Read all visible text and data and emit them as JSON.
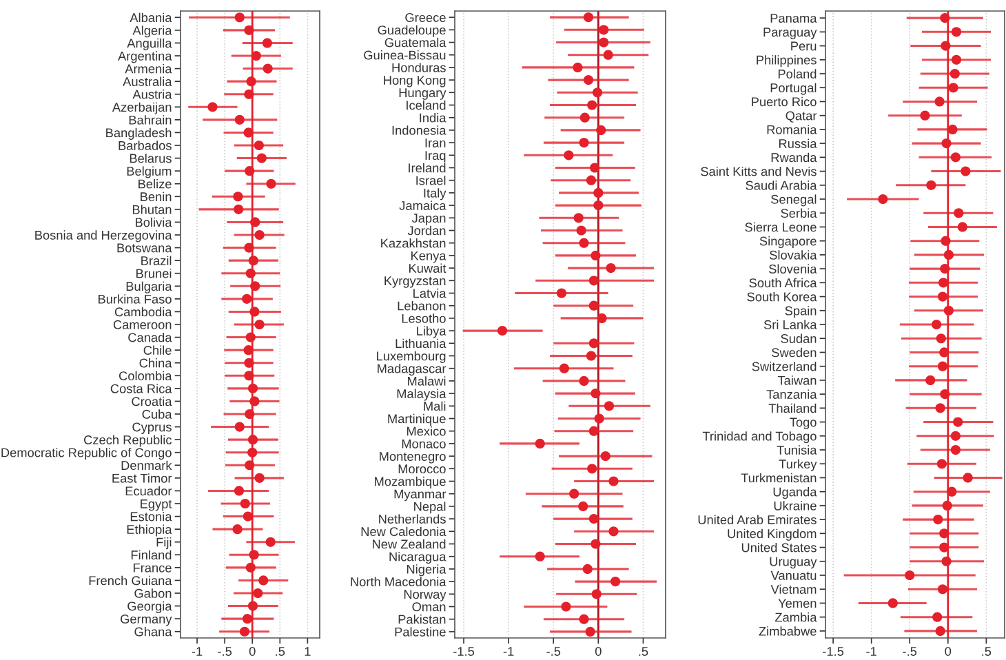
{
  "chart_data": [
    {
      "type": "scatter",
      "orientation": "horizontal",
      "color": "#e4202b",
      "marker": "circle",
      "grid": "x",
      "xlim": [
        -1.3,
        1.22
      ],
      "xticks": [
        -1,
        {
          "value": -0.5,
          "label": "-.5"
        },
        0,
        {
          "value": 0.5,
          "label": ".5"
        },
        1
      ],
      "ref_lines": [
        {
          "axis": "x",
          "value": 0,
          "color": "#e4202b"
        }
      ],
      "categories": [
        "Albania",
        "Algeria",
        "Anguilla",
        "Argentina",
        "Armenia",
        "Australia",
        "Austria",
        "Azerbaijan",
        "Bahrain",
        "Bangladesh",
        "Barbados",
        "Belarus",
        "Belgium",
        "Belize",
        "Benin",
        "Bhutan",
        "Bolivia",
        "Bosnia and Herzegovina",
        "Botswana",
        "Brazil",
        "Brunei",
        "Bulgaria",
        "Burkina Faso",
        "Cambodia",
        "Cameroon",
        "Canada",
        "Chile",
        "China",
        "Colombia",
        "Costa Rica",
        "Croatia",
        "Cuba",
        "Cyprus",
        "Czech Republic",
        "Democratic Republic of Congo",
        "Denmark",
        "East Timor",
        "Ecuador",
        "Egypt",
        "Estonia",
        "Ethiopia",
        "Fiji",
        "Finland",
        "France",
        "French Guiana",
        "Gabon",
        "Georgia",
        "Germany",
        "Ghana"
      ],
      "values": [
        -0.23,
        -0.06,
        0.27,
        0.07,
        0.28,
        -0.02,
        -0.06,
        -0.72,
        -0.23,
        -0.07,
        0.12,
        0.17,
        -0.05,
        0.34,
        -0.26,
        -0.25,
        0.05,
        0.13,
        -0.06,
        0.02,
        -0.03,
        0.05,
        -0.1,
        0.04,
        0.13,
        -0.03,
        -0.07,
        -0.06,
        -0.06,
        0.01,
        0.04,
        -0.05,
        -0.23,
        0.01,
        0,
        -0.05,
        0.13,
        -0.24,
        -0.13,
        -0.08,
        -0.27,
        0.33,
        0.03,
        -0.03,
        0.2,
        0.1,
        0.01,
        -0.09,
        -0.14
      ],
      "errors": [
        [
          -1.15,
          0.68
        ],
        [
          -0.53,
          0.41
        ],
        [
          -0.18,
          0.73
        ],
        [
          -0.38,
          0.52
        ],
        [
          -0.17,
          0.73
        ],
        [
          -0.46,
          0.44
        ],
        [
          -0.51,
          0.38
        ],
        [
          -1.16,
          -0.27
        ],
        [
          -0.9,
          0.45
        ],
        [
          -0.52,
          0.38
        ],
        [
          -0.33,
          0.56
        ],
        [
          -0.28,
          0.62
        ],
        [
          -0.5,
          0.39
        ],
        [
          -0.11,
          0.78
        ],
        [
          -0.73,
          0.23
        ],
        [
          -0.97,
          0.48
        ],
        [
          -0.46,
          0.56
        ],
        [
          -0.33,
          0.58
        ],
        [
          -0.53,
          0.43
        ],
        [
          -0.43,
          0.47
        ],
        [
          -0.56,
          0.5
        ],
        [
          -0.4,
          0.51
        ],
        [
          -0.56,
          0.37
        ],
        [
          -0.43,
          0.52
        ],
        [
          -0.33,
          0.57
        ],
        [
          -0.47,
          0.43
        ],
        [
          -0.51,
          0.38
        ],
        [
          -0.5,
          0.38
        ],
        [
          -0.5,
          0.4
        ],
        [
          -0.45,
          0.48
        ],
        [
          -0.41,
          0.49
        ],
        [
          -0.52,
          0.43
        ],
        [
          -0.75,
          0.3
        ],
        [
          -0.44,
          0.47
        ],
        [
          -0.48,
          0.48
        ],
        [
          -0.49,
          0.41
        ],
        [
          -0.32,
          0.57
        ],
        [
          -0.8,
          0.3
        ],
        [
          -0.57,
          0.32
        ],
        [
          -0.53,
          0.39
        ],
        [
          -0.72,
          0.19
        ],
        [
          -0.11,
          0.77
        ],
        [
          -0.42,
          0.48
        ],
        [
          -0.48,
          0.43
        ],
        [
          -0.25,
          0.65
        ],
        [
          -0.34,
          0.55
        ],
        [
          -0.44,
          0.47
        ],
        [
          -0.56,
          0.39
        ],
        [
          -0.6,
          0.31
        ]
      ]
    },
    {
      "type": "scatter",
      "orientation": "horizontal",
      "color": "#e4202b",
      "marker": "circle",
      "grid": "x",
      "xlim": [
        -1.6,
        0.75
      ],
      "xticks": [
        {
          "value": -1.5,
          "label": "-1.5"
        },
        -1,
        {
          "value": -0.5,
          "label": "-.5"
        },
        0,
        {
          "value": 0.5,
          "label": ".5"
        }
      ],
      "ref_lines": [
        {
          "axis": "x",
          "value": 0,
          "color": "#b0101c"
        }
      ],
      "categories": [
        "Greece",
        "Guadeloupe",
        "Guatemala",
        "Guinea-Bissau",
        "Honduras",
        "Hong Kong",
        "Hungary",
        "Iceland",
        "India",
        "Indonesia",
        "Iran",
        "Iraq",
        "Ireland",
        "Israel",
        "Italy",
        "Jamaica",
        "Japan",
        "Jordan",
        "Kazakhstan",
        "Kenya",
        "Kuwait",
        "Kyrgyzstan",
        "Latvia",
        "Lebanon",
        "Lesotho",
        "Libya",
        "Lithuania",
        "Luxembourg",
        "Madagascar",
        "Malawi",
        "Malaysia",
        "Mali",
        "Martinique",
        "Mexico",
        "Monaco",
        "Montenegro",
        "Morocco",
        "Mozambique",
        "Myanmar",
        "Nepal",
        "Netherlands",
        "New Caledonia",
        "New Zealand",
        "Nicaragua",
        "Nigeria",
        "North Macedonia",
        "Norway",
        "Oman",
        "Pakistan",
        "Palestine"
      ],
      "values": [
        -0.11,
        0.06,
        0.06,
        0.11,
        -0.23,
        -0.11,
        -0.01,
        -0.07,
        -0.15,
        0.03,
        -0.16,
        -0.33,
        -0.04,
        -0.08,
        0,
        0,
        -0.22,
        -0.19,
        -0.16,
        -0.03,
        0.14,
        -0.05,
        -0.41,
        -0.05,
        0.04,
        -1.07,
        -0.05,
        -0.08,
        -0.38,
        -0.16,
        -0.03,
        0.12,
        0.01,
        -0.05,
        -0.65,
        0.08,
        -0.07,
        0.17,
        -0.27,
        -0.17,
        -0.05,
        0.17,
        -0.03,
        -0.65,
        -0.12,
        0.19,
        -0.02,
        -0.36,
        -0.16,
        -0.09
      ],
      "errors": [
        [
          -0.54,
          0.34
        ],
        [
          -0.38,
          0.51
        ],
        [
          -0.47,
          0.58
        ],
        [
          -0.34,
          0.56
        ],
        [
          -0.85,
          0.4
        ],
        [
          -0.56,
          0.34
        ],
        [
          -0.46,
          0.44
        ],
        [
          -0.54,
          0.42
        ],
        [
          -0.6,
          0.29
        ],
        [
          -0.42,
          0.47
        ],
        [
          -0.61,
          0.29
        ],
        [
          -0.83,
          0.16
        ],
        [
          -0.48,
          0.41
        ],
        [
          -0.53,
          0.36
        ],
        [
          -0.44,
          0.45
        ],
        [
          -0.48,
          0.48
        ],
        [
          -0.66,
          0.23
        ],
        [
          -0.64,
          0.27
        ],
        [
          -0.62,
          0.3
        ],
        [
          -0.48,
          0.42
        ],
        [
          -0.34,
          0.62
        ],
        [
          -0.7,
          0.62
        ],
        [
          -0.93,
          0.11
        ],
        [
          -0.5,
          0.39
        ],
        [
          -0.42,
          0.5
        ],
        [
          -1.51,
          -0.62
        ],
        [
          -0.5,
          0.4
        ],
        [
          -0.54,
          0.38
        ],
        [
          -0.94,
          0.17
        ],
        [
          -0.62,
          0.3
        ],
        [
          -0.48,
          0.41
        ],
        [
          -0.33,
          0.58
        ],
        [
          -0.45,
          0.47
        ],
        [
          -0.49,
          0.39
        ],
        [
          -1.1,
          -0.21
        ],
        [
          -0.44,
          0.6
        ],
        [
          -0.52,
          0.38
        ],
        [
          -0.27,
          0.62
        ],
        [
          -0.81,
          0.27
        ],
        [
          -0.63,
          0.28
        ],
        [
          -0.5,
          0.38
        ],
        [
          -0.27,
          0.62
        ],
        [
          -0.48,
          0.42
        ],
        [
          -1.1,
          -0.21
        ],
        [
          -0.57,
          0.34
        ],
        [
          -0.26,
          0.65
        ],
        [
          -0.47,
          0.43
        ],
        [
          -0.83,
          0.1
        ],
        [
          -0.61,
          0.29
        ],
        [
          -0.54,
          0.37
        ]
      ]
    },
    {
      "type": "scatter",
      "orientation": "horizontal",
      "color": "#e4202b",
      "marker": "circle",
      "grid": "x",
      "xlim": [
        -1.6,
        0.74
      ],
      "xticks": [
        {
          "value": -1.5,
          "label": "-1.5"
        },
        -1,
        {
          "value": -0.5,
          "label": "-.5"
        },
        0,
        {
          "value": 0.5,
          "label": ".5"
        }
      ],
      "ref_lines": [
        {
          "axis": "x",
          "value": 0,
          "color": "#e4202b"
        }
      ],
      "categories": [
        "Panama",
        "Paraguay",
        "Peru",
        "Philippines",
        "Poland",
        "Portugal",
        "Puerto Rico",
        "Qatar",
        "Romania",
        "Russia",
        "Rwanda",
        "Saint Kitts and Nevis",
        "Saudi Arabia",
        "Senegal",
        "Serbia",
        "Sierra Leone",
        "Singapore",
        "Slovakia",
        "Slovenia",
        "South Africa",
        "South Korea",
        "Spain",
        "Sri Lanka",
        "Sudan",
        "Sweden",
        "Switzerland",
        "Taiwan",
        "Tanzania",
        "Thailand",
        "Togo",
        "Trinidad and Tobago",
        "Tunisia",
        "Turkey",
        "Turkmenistan",
        "Uganda",
        "Ukraine",
        "United Arab Emirates",
        "United Kingdom",
        "United States",
        "Uruguay",
        "Vanuatu",
        "Vietnam",
        "Yemen",
        "Zambia",
        "Zimbabwe"
      ],
      "values": [
        -0.04,
        0.11,
        -0.03,
        0.11,
        0.09,
        0.07,
        -0.11,
        -0.3,
        0.06,
        -0.02,
        0.1,
        0.23,
        -0.22,
        -0.85,
        0.14,
        0.19,
        -0.03,
        0.01,
        -0.04,
        -0.06,
        -0.07,
        0.01,
        -0.15,
        -0.09,
        -0.05,
        -0.07,
        -0.23,
        -0.04,
        -0.1,
        0.13,
        0.1,
        0.1,
        -0.08,
        0.26,
        0.05,
        -0.01,
        -0.13,
        -0.05,
        -0.05,
        -0.02,
        -0.5,
        -0.07,
        -0.72,
        -0.14,
        -0.1
      ],
      "errors": [
        [
          -0.54,
          0.46
        ],
        [
          -0.34,
          0.56
        ],
        [
          -0.49,
          0.43
        ],
        [
          -0.34,
          0.56
        ],
        [
          -0.36,
          0.54
        ],
        [
          -0.38,
          0.52
        ],
        [
          -0.59,
          0.38
        ],
        [
          -0.78,
          0.18
        ],
        [
          -0.4,
          0.51
        ],
        [
          -0.47,
          0.43
        ],
        [
          -0.38,
          0.57
        ],
        [
          -0.22,
          0.69
        ],
        [
          -0.68,
          0.23
        ],
        [
          -1.32,
          -0.38
        ],
        [
          -0.32,
          0.59
        ],
        [
          -0.26,
          0.64
        ],
        [
          -0.49,
          0.41
        ],
        [
          -0.44,
          0.47
        ],
        [
          -0.5,
          0.42
        ],
        [
          -0.51,
          0.39
        ],
        [
          -0.51,
          0.39
        ],
        [
          -0.44,
          0.46
        ],
        [
          -0.63,
          0.34
        ],
        [
          -0.61,
          0.44
        ],
        [
          -0.5,
          0.4
        ],
        [
          -0.51,
          0.39
        ],
        [
          -0.69,
          0.25
        ],
        [
          -0.5,
          0.44
        ],
        [
          -0.55,
          0.37
        ],
        [
          -0.32,
          0.59
        ],
        [
          -0.41,
          0.6
        ],
        [
          -0.36,
          0.55
        ],
        [
          -0.53,
          0.37
        ],
        [
          -0.18,
          0.71
        ],
        [
          -0.45,
          0.55
        ],
        [
          -0.47,
          0.46
        ],
        [
          -0.59,
          0.34
        ],
        [
          -0.5,
          0.4
        ],
        [
          -0.5,
          0.4
        ],
        [
          -0.5,
          0.47
        ],
        [
          -1.36,
          0.36
        ],
        [
          -0.52,
          0.38
        ],
        [
          -1.17,
          -0.28
        ],
        [
          -0.62,
          0.32
        ],
        [
          -0.57,
          0.38
        ]
      ]
    }
  ]
}
